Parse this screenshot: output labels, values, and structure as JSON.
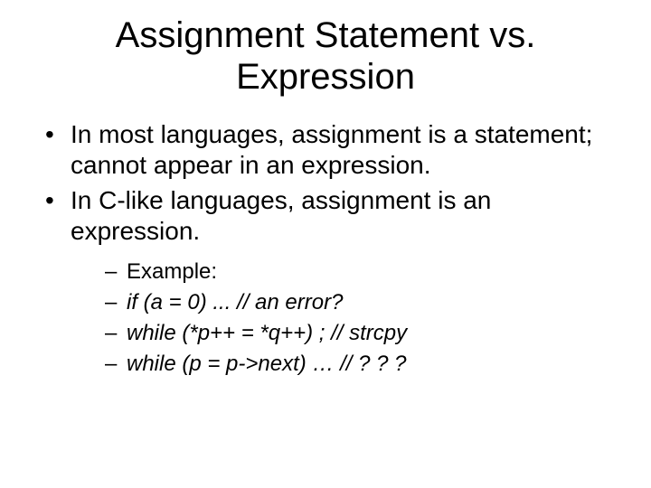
{
  "title": "Assignment Statement vs. Expression",
  "bullets": {
    "b0": "In most languages, assignment is a statement; cannot appear in an expression.",
    "b1": "In C-like languages, assignment is an expression."
  },
  "subs": {
    "s0": "Example:",
    "s1": "if (a = 0) ... // an error?",
    "s2": "while (*p++ = *q++) ; // strcpy",
    "s3": "while (p = p->next) …  // ? ? ?"
  },
  "colors": {
    "background": "#ffffff",
    "text": "#000000"
  },
  "fonts": {
    "title_fontsize": 40,
    "body_fontsize": 28,
    "sub_fontsize": 24,
    "family": "Arial"
  }
}
